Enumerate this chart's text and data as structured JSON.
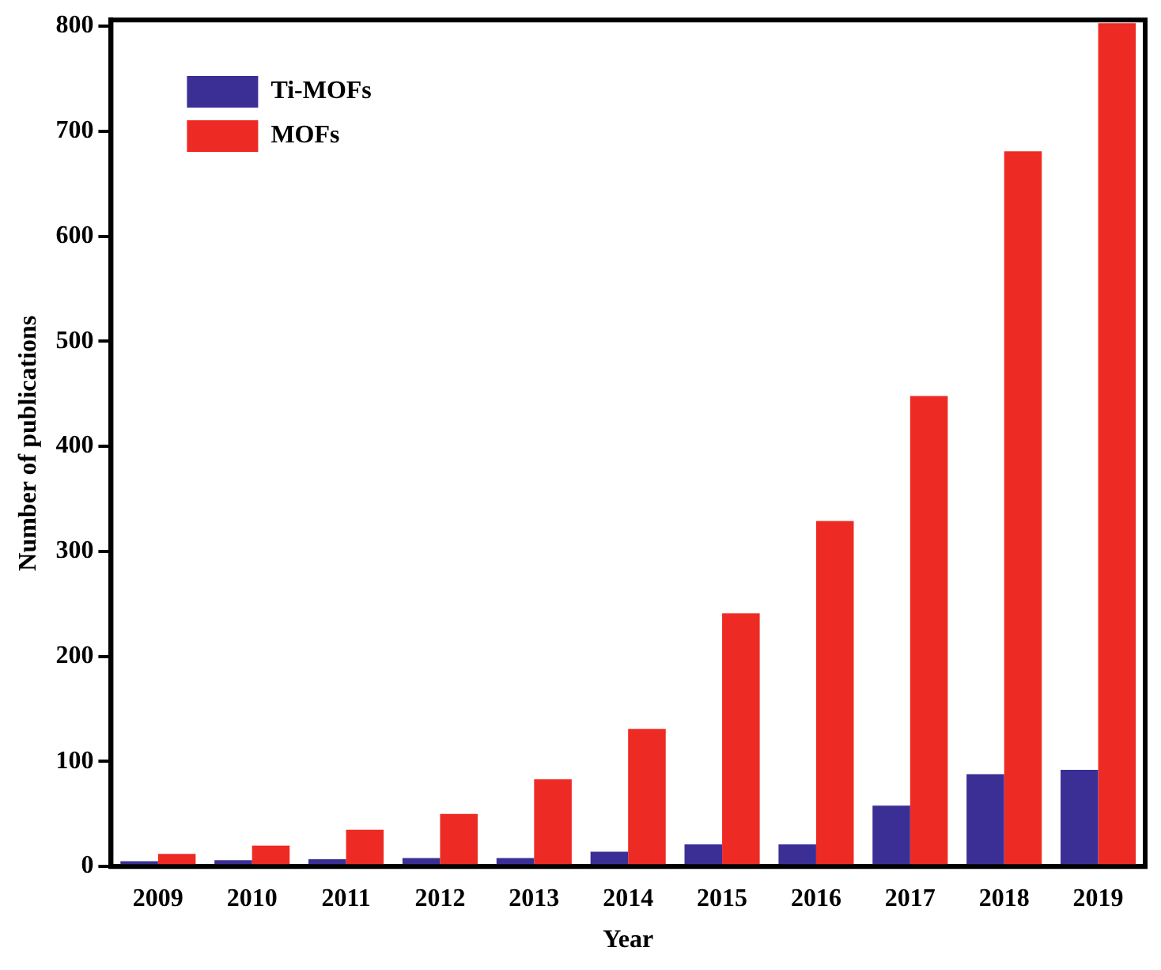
{
  "chart_data": {
    "type": "bar",
    "xlabel": "Year",
    "ylabel": "Number of publications",
    "categories": [
      "2009",
      "2010",
      "2011",
      "2012",
      "2013",
      "2014",
      "2015",
      "2016",
      "2017",
      "2018",
      "2019"
    ],
    "series": [
      {
        "name": "Ti-MOFs",
        "color": "#3b2f96",
        "values": [
          5,
          6,
          7,
          8,
          8,
          14,
          21,
          21,
          58,
          88,
          92
        ]
      },
      {
        "name": "MOFs",
        "color": "#ee2a24",
        "values": [
          12,
          20,
          35,
          50,
          83,
          131,
          241,
          329,
          448,
          681,
          803
        ]
      }
    ],
    "ylim": [
      0,
      806
    ],
    "yticks": [
      0,
      100,
      200,
      300,
      400,
      500,
      600,
      700,
      800
    ],
    "grid": false,
    "legend": "top left"
  }
}
